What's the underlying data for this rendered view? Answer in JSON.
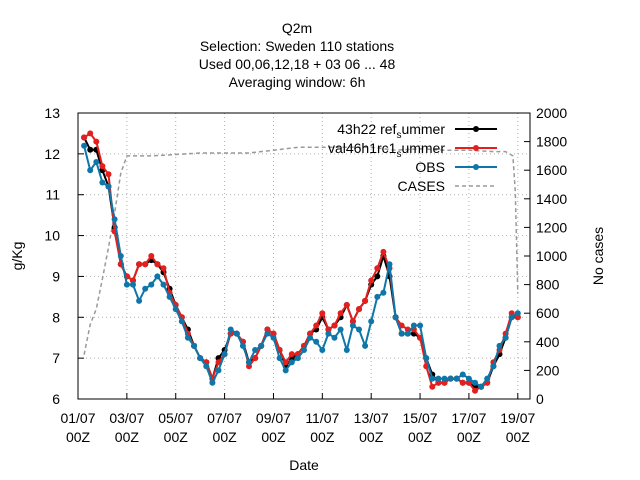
{
  "chart_data": {
    "type": "line",
    "title_lines": [
      "Q2m",
      "Selection: Sweden    110 stations",
      "Used  00,06,12,18  + 03 06 ... 48",
      "Averaging window:  6h"
    ],
    "xlabel": "Date",
    "ylabel": "g/Kg",
    "y2label": "No cases",
    "x_range": [
      0,
      18.5
    ],
    "x_ticks": [
      {
        "x": 0,
        "label": [
          "01/07",
          "00Z"
        ]
      },
      {
        "x": 2,
        "label": [
          "03/07",
          "00Z"
        ]
      },
      {
        "x": 4,
        "label": [
          "05/07",
          "00Z"
        ]
      },
      {
        "x": 6,
        "label": [
          "07/07",
          "00Z"
        ]
      },
      {
        "x": 8,
        "label": [
          "09/07",
          "00Z"
        ]
      },
      {
        "x": 10,
        "label": [
          "11/07",
          "00Z"
        ]
      },
      {
        "x": 12,
        "label": [
          "13/07",
          "00Z"
        ]
      },
      {
        "x": 14,
        "label": [
          "15/07",
          "00Z"
        ]
      },
      {
        "x": 16,
        "label": [
          "17/07",
          "00Z"
        ]
      },
      {
        "x": 18,
        "label": [
          "19/07",
          "00Z"
        ]
      }
    ],
    "ylim": [
      6,
      13
    ],
    "y_ticks": [
      "6",
      "7",
      "8",
      "9",
      "10",
      "11",
      "12",
      "13"
    ],
    "y2lim": [
      0,
      2000
    ],
    "y2_ticks": [
      "0",
      "200",
      "400",
      "600",
      "800",
      "1000",
      "1200",
      "1400",
      "1600",
      "1800",
      "2000"
    ],
    "grid": true,
    "legend_position": "top-right",
    "x": [
      0.25,
      0.5,
      0.75,
      1.0,
      1.25,
      1.5,
      1.75,
      2.0,
      2.25,
      2.5,
      2.75,
      3.0,
      3.25,
      3.5,
      3.75,
      4.0,
      4.25,
      4.5,
      4.75,
      5.0,
      5.25,
      5.5,
      5.75,
      6.0,
      6.25,
      6.5,
      6.75,
      7.0,
      7.25,
      7.5,
      7.75,
      8.0,
      8.25,
      8.5,
      8.75,
      9.0,
      9.25,
      9.5,
      9.75,
      10.0,
      10.25,
      10.5,
      10.75,
      11.0,
      11.25,
      11.5,
      11.75,
      12.0,
      12.25,
      12.5,
      12.75,
      13.0,
      13.25,
      13.5,
      13.75,
      14.0,
      14.25,
      14.5,
      14.75,
      15.0,
      15.25,
      15.5,
      15.75,
      16.0,
      16.25,
      16.5,
      16.75,
      17.0,
      17.25,
      17.5,
      17.75,
      18.0
    ],
    "series": [
      {
        "name": "43h22 ref_summer",
        "name_display": "43h22 ref",
        "name_sub": "s",
        "name_after": "ummer",
        "color": "#000000",
        "marker": "circle",
        "axis": "y",
        "values": [
          12.4,
          12.1,
          12.1,
          11.6,
          11.2,
          10.2,
          9.3,
          9.0,
          8.9,
          9.3,
          9.3,
          9.4,
          9.3,
          9.1,
          8.7,
          8.3,
          8.0,
          7.7,
          7.3,
          7.0,
          6.9,
          6.5,
          7.0,
          7.2,
          7.6,
          7.6,
          7.4,
          6.9,
          7.0,
          7.3,
          7.7,
          7.6,
          7.2,
          6.8,
          7.0,
          7.1,
          7.3,
          7.6,
          7.7,
          8.0,
          7.7,
          7.8,
          8.0,
          8.3,
          7.9,
          8.2,
          8.4,
          8.8,
          9.0,
          9.5,
          9.0,
          8.0,
          7.6,
          7.6,
          7.6,
          7.5,
          7.0,
          6.6,
          6.4,
          6.4,
          6.5,
          6.5,
          6.4,
          6.4,
          6.3,
          6.3,
          6.4,
          6.8,
          7.1,
          7.5,
          8.0,
          8.0
        ]
      },
      {
        "name": "val46h1rc1_summer",
        "name_display": "val46h1rc1",
        "name_sub": "s",
        "name_after": "ummer",
        "color": "#e4201e",
        "marker": "circle",
        "axis": "y",
        "values": [
          12.4,
          12.5,
          12.3,
          11.7,
          11.5,
          10.1,
          9.3,
          9.0,
          8.9,
          9.3,
          9.3,
          9.5,
          9.3,
          9.2,
          8.6,
          8.3,
          8.0,
          7.6,
          7.3,
          7.0,
          6.9,
          6.5,
          6.9,
          7.1,
          7.6,
          7.6,
          7.4,
          6.8,
          7.0,
          7.3,
          7.7,
          7.6,
          7.2,
          6.9,
          7.1,
          7.1,
          7.3,
          7.6,
          7.8,
          8.1,
          7.7,
          7.8,
          8.1,
          8.3,
          7.9,
          8.2,
          8.4,
          8.9,
          9.2,
          9.6,
          9.2,
          8.0,
          7.8,
          7.7,
          7.7,
          7.5,
          6.8,
          6.3,
          6.4,
          6.4,
          6.5,
          6.5,
          6.4,
          6.4,
          6.2,
          6.3,
          6.4,
          6.9,
          7.2,
          7.6,
          8.1,
          8.0
        ]
      },
      {
        "name": "OBS",
        "color": "#0e76a8",
        "marker": "circle",
        "axis": "y",
        "values": [
          12.2,
          11.6,
          11.8,
          11.3,
          11.2,
          10.4,
          9.5,
          8.8,
          8.8,
          8.4,
          8.7,
          8.8,
          9.0,
          8.8,
          8.5,
          8.2,
          7.9,
          7.5,
          7.3,
          7.0,
          6.8,
          6.4,
          6.7,
          7.1,
          7.7,
          7.6,
          7.3,
          6.9,
          7.2,
          7.3,
          7.6,
          7.5,
          7.0,
          6.7,
          6.9,
          7.0,
          7.2,
          7.5,
          7.4,
          7.2,
          7.6,
          7.5,
          7.7,
          7.2,
          7.8,
          7.7,
          7.3,
          7.9,
          8.5,
          8.6,
          9.3,
          8.0,
          7.6,
          7.6,
          7.8,
          7.8,
          7.0,
          6.5,
          6.5,
          6.5,
          6.5,
          6.5,
          6.6,
          6.5,
          6.4,
          6.3,
          6.5,
          6.8,
          7.3,
          7.5,
          8.0,
          8.1
        ]
      },
      {
        "name": "CASES",
        "color": "#999999",
        "dashed": true,
        "axis": "y2",
        "x": [
          0.25,
          0.5,
          0.75,
          1.0,
          1.25,
          1.5,
          1.75,
          2.0,
          2.25,
          3.0,
          4.0,
          5.0,
          6.0,
          7.0,
          8.0,
          9.0,
          10.0,
          11.0,
          12.0,
          13.0,
          14.0,
          15.0,
          16.0,
          17.0,
          17.5,
          17.8,
          17.9,
          18.0
        ],
        "values": [
          310,
          520,
          630,
          840,
          1060,
          1300,
          1580,
          1700,
          1700,
          1700,
          1710,
          1720,
          1720,
          1720,
          1740,
          1760,
          1760,
          1760,
          1760,
          1740,
          1750,
          1740,
          1740,
          1730,
          1730,
          1700,
          1450,
          740
        ]
      }
    ]
  }
}
